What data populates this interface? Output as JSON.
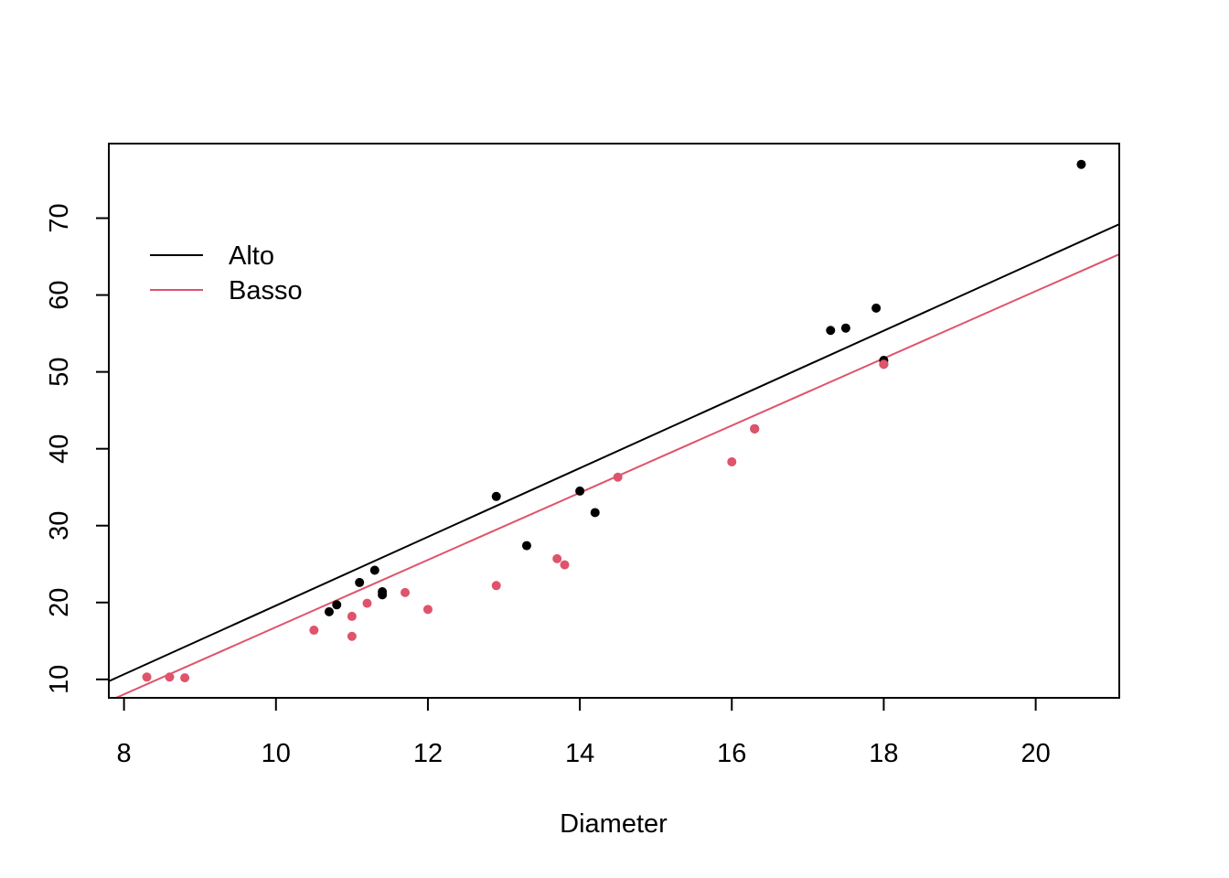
{
  "chart_data": {
    "type": "scatter",
    "title": "",
    "xlabel": "Diameter",
    "ylabel": "",
    "xlim": [
      7.8,
      21.1
    ],
    "ylim": [
      7.6,
      79.7
    ],
    "xticks": [
      8,
      10,
      12,
      14,
      16,
      18,
      20
    ],
    "yticks": [
      10,
      20,
      30,
      40,
      50,
      60,
      70
    ],
    "grid": false,
    "legend_position": "top-left",
    "series": [
      {
        "name": "Alto",
        "color": "#000000",
        "points": [
          [
            10.7,
            18.8
          ],
          [
            10.8,
            19.7
          ],
          [
            11.1,
            22.6
          ],
          [
            11.3,
            24.2
          ],
          [
            11.4,
            21.0
          ],
          [
            11.4,
            21.4
          ],
          [
            12.9,
            33.8
          ],
          [
            13.3,
            27.4
          ],
          [
            14.0,
            34.5
          ],
          [
            14.2,
            31.7
          ],
          [
            16.3,
            42.6
          ],
          [
            17.3,
            55.4
          ],
          [
            17.5,
            55.7
          ],
          [
            17.9,
            58.3
          ],
          [
            18.0,
            51.5
          ],
          [
            18.0,
            51.0
          ],
          [
            20.6,
            77.0
          ]
        ],
        "fit": {
          "intercept": -25.1,
          "slope": 4.47
        }
      },
      {
        "name": "Basso",
        "color": "#DF536B",
        "points": [
          [
            8.3,
            10.3
          ],
          [
            8.6,
            10.3
          ],
          [
            8.8,
            10.2
          ],
          [
            10.5,
            16.4
          ],
          [
            11.0,
            15.6
          ],
          [
            11.0,
            18.2
          ],
          [
            11.2,
            19.9
          ],
          [
            11.7,
            21.3
          ],
          [
            12.0,
            19.1
          ],
          [
            12.9,
            22.2
          ],
          [
            13.7,
            25.7
          ],
          [
            13.8,
            24.9
          ],
          [
            14.5,
            36.3
          ],
          [
            16.0,
            38.3
          ],
          [
            16.3,
            42.6
          ],
          [
            18.0,
            51.0
          ]
        ],
        "fit": {
          "intercept": -26.9,
          "slope": 4.37
        }
      }
    ]
  }
}
